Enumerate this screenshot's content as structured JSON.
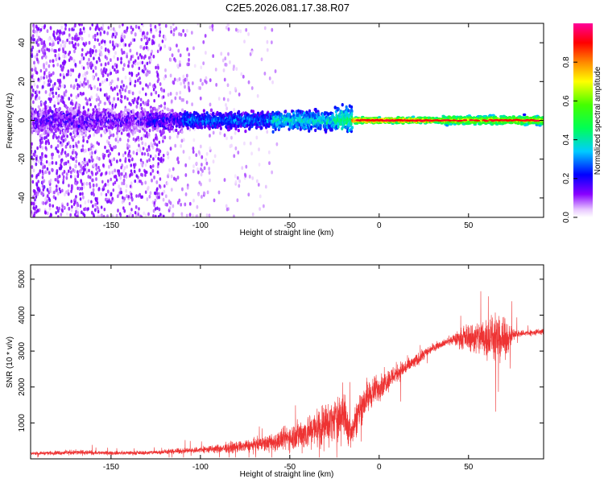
{
  "figure": {
    "title": "C2E5.2026.081.17.38.R07"
  },
  "chart_data": [
    {
      "type": "heatmap",
      "title": "C2E5.2026.081.17.38.R07",
      "xlabel": "Height of straight line (km)",
      "ylabel": "Frequency (Hz)",
      "xlim": [
        -195,
        92
      ],
      "ylim": [
        -50,
        50
      ],
      "x_ticks": [
        -150,
        -100,
        -50,
        0,
        50
      ],
      "y_ticks": [
        -40,
        -20,
        0,
        20,
        40
      ],
      "grid": false,
      "colorbar": {
        "label": "Normalized spectral amplitude",
        "range": [
          0.0,
          1.0
        ],
        "ticks": [
          0.0,
          0.2,
          0.4,
          0.6,
          0.8
        ],
        "colormap": "rainbow (white-violet-blue-cyan-green-yellow-orange-red-magenta)"
      },
      "description_features": {
        "band_center_hz": 0,
        "band_halfwidth_hz": {
          "x_-150": 8,
          "x_-100": 6,
          "x_-50": 7,
          "x_0": 2,
          "x_50": 3
        },
        "peak_amplitude_region_km": [
          -15,
          80
        ],
        "scatter_noise_region_km": [
          -195,
          -60
        ]
      }
    },
    {
      "type": "line",
      "xlabel": "Height of straight line (km)",
      "ylabel": "SNR (10 * v/v)",
      "xlim": [
        -195,
        92
      ],
      "ylim": [
        0,
        5400
      ],
      "x_ticks": [
        -150,
        -100,
        -50,
        0,
        50
      ],
      "y_ticks": [
        1000,
        2000,
        3000,
        4000,
        5000
      ],
      "grid": false,
      "series": [
        {
          "name": "SNR",
          "color": "#ee3333",
          "envelope": {
            "x": [
              -195,
              -170,
              -150,
              -130,
              -110,
              -90,
              -70,
              -60,
              -50,
              -40,
              -30,
              -25,
              -20,
              -18,
              -15,
              -10,
              -5,
              0,
              5,
              10,
              20,
              25,
              30,
              35,
              40,
              45,
              50,
              55,
              60,
              65,
              70,
              75,
              80,
              85,
              92
            ],
            "mean": [
              150,
              180,
              160,
              170,
              220,
              280,
              380,
              450,
              600,
              750,
              950,
              1100,
              1300,
              900,
              800,
              1500,
              1800,
              2000,
              2200,
              2400,
              2700,
              2900,
              3100,
              3200,
              3300,
              3350,
              3400,
              3350,
              3400,
              3350,
              3300,
              3450,
              3500,
              3500,
              3550
            ],
            "spread": [
              60,
              120,
              80,
              90,
              120,
              200,
              300,
              400,
              600,
              800,
              1000,
              900,
              1200,
              800,
              700,
              900,
              700,
              600,
              500,
              450,
              300,
              250,
              200,
              150,
              200,
              400,
              600,
              800,
              1000,
              1000,
              900,
              300,
              150,
              150,
              150
            ]
          }
        }
      ]
    }
  ]
}
